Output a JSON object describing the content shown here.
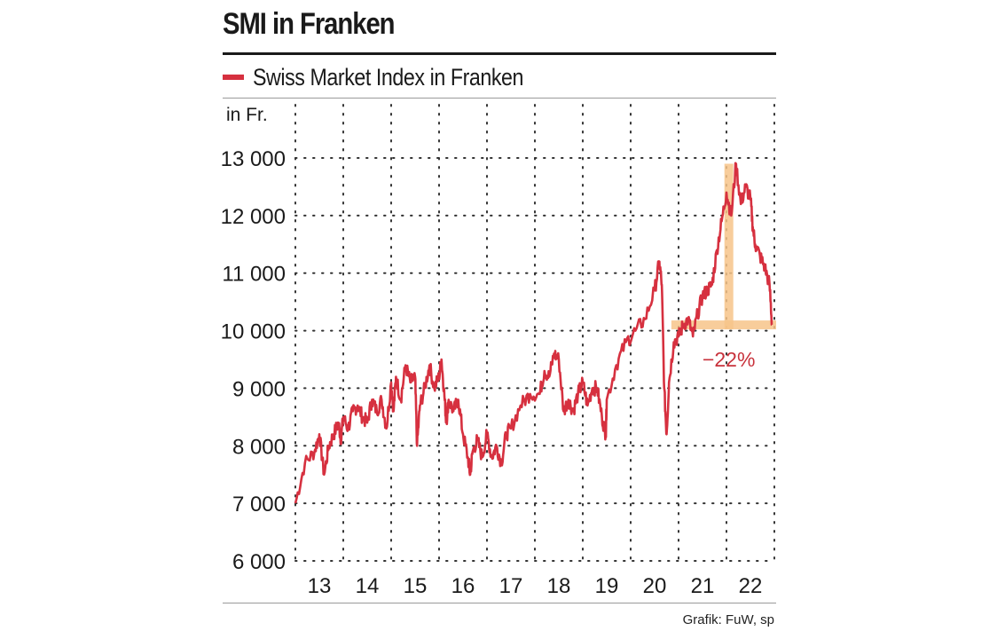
{
  "chart_data": {
    "type": "line",
    "title": "SMI in Franken",
    "legend": "Swiss Market Index in Franken",
    "legend_position": "top-left",
    "ylabel": "in Fr.",
    "ylim": [
      6000,
      13000
    ],
    "y_ticks": [
      6000,
      7000,
      8000,
      9000,
      10000,
      11000,
      12000,
      13000
    ],
    "y_tick_labels": [
      "6 000",
      "7 000",
      "8 000",
      "9 000",
      "10 000",
      "11 000",
      "12 000",
      "13 000"
    ],
    "xlim": [
      2012.5,
      2022.5
    ],
    "x_tick_labels": [
      "13",
      "14",
      "15",
      "16",
      "17",
      "18",
      "19",
      "20",
      "21",
      "22"
    ],
    "grid": "dotted",
    "colors": {
      "series": "#d6303f",
      "highlight": "#f7c48a",
      "annotation": "#c8323c"
    },
    "series": [
      {
        "name": "Swiss Market Index in Franken",
        "x": [
          2012.5,
          2012.7,
          2012.9,
          2013.0,
          2013.1,
          2013.2,
          2013.3,
          2013.4,
          2013.45,
          2013.5,
          2013.6,
          2013.7,
          2013.8,
          2013.9,
          2014.0,
          2014.1,
          2014.2,
          2014.3,
          2014.4,
          2014.5,
          2014.55,
          2014.6,
          2014.7,
          2014.8,
          2014.9,
          2015.0,
          2015.04,
          2015.1,
          2015.2,
          2015.3,
          2015.4,
          2015.5,
          2015.55,
          2015.6,
          2015.65,
          2015.7,
          2015.8,
          2015.9,
          2016.0,
          2016.1,
          2016.15,
          2016.2,
          2016.3,
          2016.4,
          2016.5,
          2016.6,
          2016.7,
          2016.8,
          2016.9,
          2017.0,
          2017.2,
          2017.4,
          2017.6,
          2017.7,
          2017.8,
          2017.9,
          2018.0,
          2018.1,
          2018.2,
          2018.3,
          2018.4,
          2018.5,
          2018.6,
          2018.7,
          2018.8,
          2018.9,
          2018.98,
          2019.0,
          2019.2,
          2019.4,
          2019.6,
          2019.8,
          2020.0,
          2020.1,
          2020.15,
          2020.2,
          2020.25,
          2020.3,
          2020.4,
          2020.5,
          2020.6,
          2020.7,
          2020.8,
          2020.9,
          2021.0,
          2021.1,
          2021.2,
          2021.3,
          2021.4,
          2021.5,
          2021.6,
          2021.7,
          2021.8,
          2021.9,
          2022.0,
          2022.05,
          2022.1,
          2022.2,
          2022.3,
          2022.4,
          2022.45
        ],
        "values": [
          7000,
          7700,
          7900,
          8200,
          7500,
          8000,
          8200,
          8400,
          8100,
          8500,
          8300,
          8600,
          8700,
          8500,
          8400,
          8800,
          8600,
          8800,
          8300,
          9100,
          8600,
          9200,
          8800,
          9400,
          9100,
          9200,
          8000,
          8700,
          9000,
          9400,
          9000,
          9200,
          9500,
          9000,
          8400,
          8800,
          8600,
          8800,
          8200,
          7800,
          7500,
          7900,
          8100,
          7800,
          8200,
          7800,
          8000,
          7700,
          8200,
          8300,
          8700,
          8900,
          8900,
          9300,
          9200,
          9600,
          9500,
          8600,
          8800,
          8600,
          8900,
          9100,
          8700,
          9000,
          9000,
          8500,
          8200,
          8800,
          9400,
          9800,
          10000,
          10200,
          10700,
          11200,
          10800,
          9000,
          8200,
          9100,
          9800,
          9900,
          10100,
          10200,
          9900,
          10300,
          10600,
          10700,
          10800,
          11400,
          11900,
          12400,
          12000,
          12900,
          12200,
          12500,
          12300,
          11800,
          11500,
          11300,
          11100,
          10800,
          10100
        ]
      }
    ],
    "annotations": [
      {
        "text": "−22%",
        "x": 2021.55,
        "y": 9500
      }
    ],
    "peak": {
      "x": 2021.55,
      "y": 12900
    },
    "trough_level": 10100
  },
  "source": "Grafik: FuW, sp"
}
